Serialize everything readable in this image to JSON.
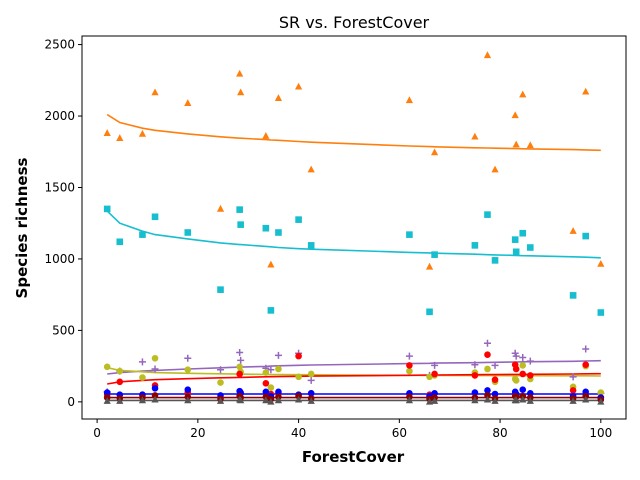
{
  "chart_data": {
    "type": "scatter",
    "title": "SR vs. ForestCover",
    "xlabel": "ForestCover",
    "ylabel": "Species richness",
    "xlim": [
      -3,
      105
    ],
    "ylim": [
      -120,
      2560
    ],
    "xticks": [
      0,
      20,
      40,
      60,
      80,
      100
    ],
    "yticks": [
      0,
      500,
      1000,
      1500,
      2000,
      2500
    ],
    "grid": false,
    "x": [
      2,
      4.5,
      9,
      11.5,
      18,
      24.5,
      28.3,
      28.5,
      33.5,
      34.5,
      36,
      40,
      42.5,
      62,
      66,
      67,
      75,
      77.5,
      79,
      83,
      83.2,
      84.5,
      86,
      94.5,
      97,
      100
    ],
    "series": [
      {
        "color": "#ff7f0e",
        "marker": "triangle",
        "y": [
          1880,
          1845,
          1875,
          2165,
          2090,
          1350,
          2295,
          2165,
          1860,
          960,
          2125,
          2205,
          1625,
          2110,
          945,
          1745,
          1855,
          2425,
          1625,
          2005,
          1800,
          2150,
          1795,
          1195,
          2170,
          965
        ],
        "fit": [
          2010,
          1955,
          1915,
          1900,
          1875,
          1855,
          1845,
          1845,
          1835,
          1832,
          1830,
          1822,
          1817,
          1790,
          1786,
          1785,
          1778,
          1776,
          1775,
          1772,
          1772,
          1771,
          1770,
          1765,
          1763,
          1760
        ]
      },
      {
        "color": "#17becf",
        "marker": "square",
        "y": [
          1350,
          1120,
          1170,
          1295,
          1185,
          785,
          1345,
          1240,
          1215,
          640,
          1185,
          1275,
          1095,
          1170,
          630,
          1030,
          1095,
          1310,
          990,
          1135,
          1050,
          1180,
          1080,
          745,
          1160,
          625
        ],
        "fit": [
          1335,
          1250,
          1195,
          1170,
          1140,
          1112,
          1100,
          1100,
          1088,
          1085,
          1080,
          1072,
          1068,
          1046,
          1042,
          1040,
          1033,
          1030,
          1028,
          1025,
          1025,
          1023,
          1022,
          1015,
          1012,
          1008
        ]
      },
      {
        "color": "#9467bd",
        "marker": "plus",
        "y": [
          70,
          215,
          280,
          230,
          305,
          225,
          345,
          290,
          235,
          225,
          325,
          340,
          150,
          320,
          185,
          255,
          260,
          410,
          255,
          340,
          320,
          310,
          285,
          175,
          370,
          60
        ],
        "fit": [
          195,
          205,
          215,
          220,
          230,
          238,
          243,
          243,
          248,
          250,
          252,
          256,
          258,
          268,
          270,
          271,
          274,
          276,
          277,
          279,
          279,
          280,
          281,
          284,
          286,
          288
        ]
      },
      {
        "color": "#bcbd22",
        "marker": "circle",
        "y": [
          245,
          215,
          170,
          305,
          225,
          135,
          245,
          210,
          205,
          100,
          230,
          175,
          195,
          215,
          175,
          185,
          205,
          230,
          140,
          160,
          150,
          255,
          160,
          105,
          250,
          65
        ],
        "fit": [
          240,
          220,
          210,
          205,
          200,
          196,
          194,
          194,
          192,
          191,
          191,
          190,
          189,
          186,
          185,
          185,
          184,
          184,
          184,
          183,
          183,
          183,
          183,
          182,
          182,
          181
        ]
      },
      {
        "color": "#ff0000",
        "marker": "circle",
        "y": [
          50,
          140,
          50,
          115,
          65,
          30,
          195,
          65,
          130,
          55,
          60,
          320,
          60,
          255,
          50,
          195,
          185,
          330,
          155,
          260,
          230,
          195,
          185,
          80,
          260,
          30
        ],
        "fit": [
          125,
          140,
          150,
          155,
          162,
          168,
          171,
          171,
          175,
          176,
          177,
          179,
          180,
          186,
          188,
          188,
          190,
          191,
          191,
          192,
          192,
          192,
          193,
          195,
          196,
          197
        ]
      },
      {
        "color": "#0000ff",
        "marker": "circle",
        "y": [
          65,
          50,
          50,
          95,
          85,
          45,
          75,
          60,
          70,
          40,
          70,
          50,
          60,
          60,
          40,
          60,
          65,
          80,
          55,
          70,
          55,
          85,
          60,
          40,
          70,
          30
        ],
        "fit": [
          55,
          55,
          55,
          55,
          55,
          55,
          55,
          55,
          55,
          55,
          55,
          55,
          55,
          55,
          55,
          55,
          55,
          55,
          55,
          55,
          55,
          55,
          55,
          55,
          55,
          55
        ]
      },
      {
        "color": "#8b0000",
        "marker": "circle",
        "y": [
          30,
          25,
          30,
          45,
          35,
          20,
          40,
          30,
          35,
          20,
          35,
          40,
          25,
          35,
          20,
          30,
          30,
          45,
          25,
          40,
          35,
          40,
          30,
          25,
          40,
          15
        ],
        "fit": [
          30,
          30,
          30,
          30,
          30,
          30,
          30,
          30,
          30,
          30,
          30,
          30,
          30,
          30,
          30,
          30,
          30,
          30,
          30,
          30,
          30,
          30,
          30,
          30,
          30,
          30
        ]
      },
      {
        "color": "#555555",
        "marker": "triangle",
        "y": [
          5,
          5,
          10,
          15,
          10,
          5,
          15,
          10,
          10,
          0,
          10,
          15,
          5,
          10,
          0,
          5,
          10,
          15,
          5,
          10,
          10,
          15,
          5,
          5,
          15,
          0
        ],
        "fit": [
          10,
          10,
          10,
          10,
          10,
          10,
          10,
          10,
          10,
          10,
          10,
          10,
          10,
          10,
          10,
          10,
          10,
          10,
          10,
          10,
          10,
          10,
          10,
          10,
          10,
          10
        ]
      }
    ]
  }
}
